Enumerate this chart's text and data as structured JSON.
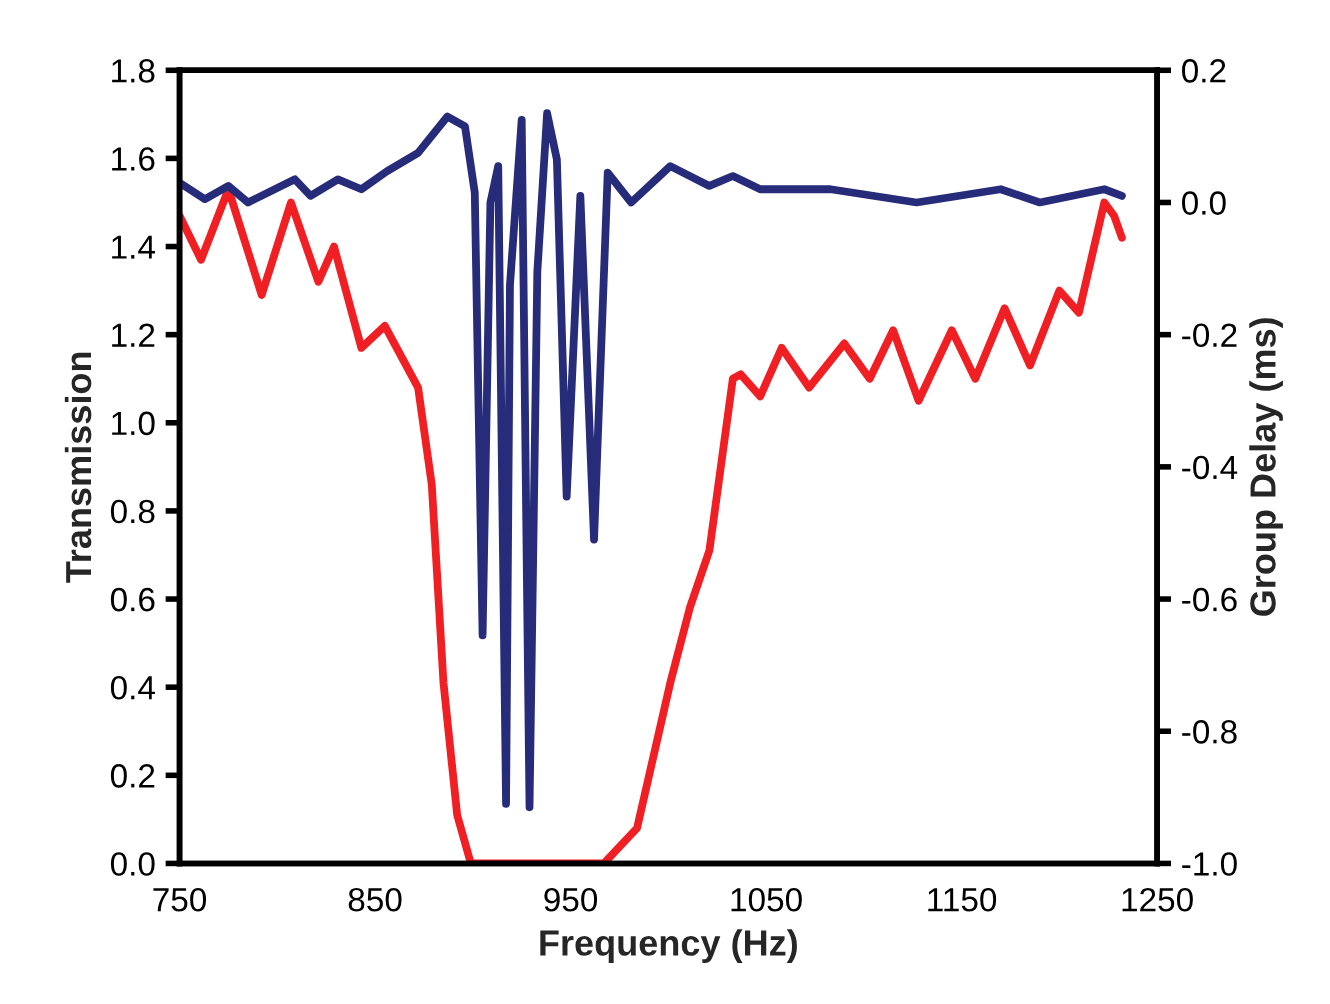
{
  "chart_data": {
    "type": "line",
    "xlabel": "Frequency (Hz)",
    "ylabel": "Transmission",
    "y2label": "Group Delay (ms)",
    "xlim": [
      750,
      1250
    ],
    "xticks": [
      750,
      850,
      950,
      1050,
      1150,
      1250
    ],
    "ylim": [
      0,
      1.8
    ],
    "yticks": [
      {
        "value": 0,
        "label": "0.0"
      },
      0.2,
      0.4,
      0.6,
      0.8,
      {
        "value": 1,
        "label": "1.0"
      },
      1.2,
      1.4,
      1.6,
      1.8
    ],
    "y2lim": [
      -1.0,
      0.2
    ],
    "y2ticks": [
      {
        "value": -1,
        "label": "-1.0"
      },
      -0.8,
      -0.6,
      -0.4,
      -0.2,
      {
        "value": 0,
        "label": "0.0"
      },
      0.2
    ],
    "grid": false,
    "legend": false,
    "marker": "none",
    "line_style": "solid",
    "series": [
      {
        "color": "#f01f24",
        "x": [
          750,
          761,
          775,
          792,
          807,
          821,
          829,
          843,
          855,
          872,
          879,
          885,
          892,
          899,
          967,
          984,
          1001,
          1011,
          1021,
          1033,
          1037,
          1047,
          1058,
          1072,
          1090,
          1103,
          1115,
          1128,
          1145,
          1157,
          1172,
          1185,
          1200,
          1210,
          1223,
          1228,
          1232
        ],
        "values": [
          1.47,
          1.37,
          1.53,
          1.29,
          1.5,
          1.32,
          1.4,
          1.17,
          1.22,
          1.08,
          0.86,
          0.41,
          0.11,
          0.0,
          0.0,
          0.08,
          0.41,
          0.58,
          0.71,
          1.1,
          1.11,
          1.06,
          1.17,
          1.08,
          1.18,
          1.1,
          1.21,
          1.05,
          1.21,
          1.1,
          1.26,
          1.13,
          1.3,
          1.25,
          1.5,
          1.47,
          1.42
        ]
      },
      {
        "color": "#262b7a",
        "axis": "y2",
        "x": [
          750,
          763,
          775,
          785,
          809,
          817,
          831,
          843,
          856,
          872,
          887,
          896,
          901,
          905,
          909,
          913,
          917,
          919,
          925,
          929,
          933,
          938,
          943,
          948,
          955,
          962,
          969,
          981,
          1001,
          1021,
          1033,
          1047,
          1083,
          1127,
          1170,
          1190,
          1223,
          1232
        ],
        "values": [
          0.03,
          0.005,
          0.025,
          0.0,
          0.035,
          0.01,
          0.035,
          0.02,
          0.047,
          0.075,
          0.13,
          0.115,
          0.015,
          -0.655,
          0.0,
          0.055,
          -0.91,
          -0.125,
          0.125,
          -0.915,
          -0.105,
          0.135,
          0.065,
          -0.445,
          0.01,
          -0.51,
          0.045,
          0.0,
          0.055,
          0.025,
          0.04,
          0.02,
          0.02,
          0.0,
          0.02,
          0.0,
          0.02,
          0.01
        ]
      }
    ]
  }
}
